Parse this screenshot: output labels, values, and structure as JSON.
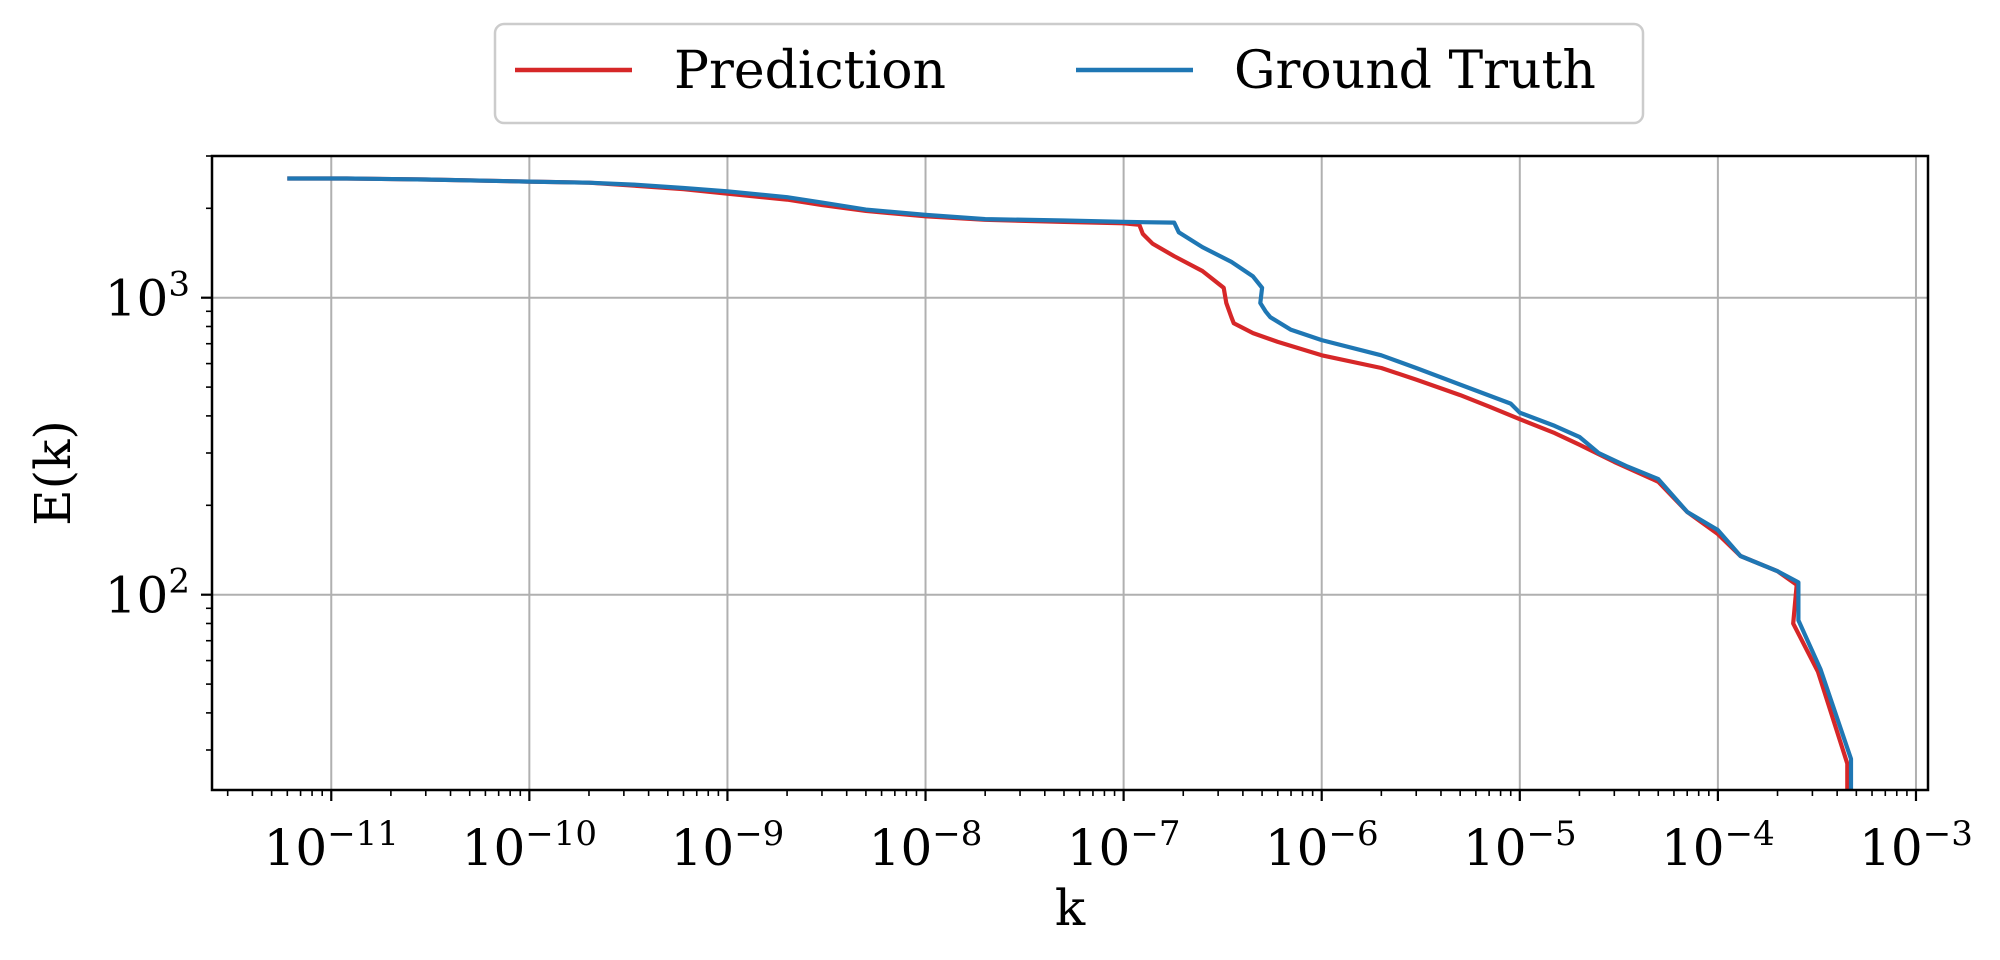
{
  "chart_data": {
    "type": "line",
    "title": "",
    "xlabel": "k",
    "ylabel": "E(k)",
    "x_scale": "log",
    "y_scale": "log",
    "xlim": [
      2.5e-12,
      0.00115
    ],
    "ylim": [
      22,
      3000
    ],
    "grid": true,
    "legend": {
      "placement": "top-center-outside",
      "columns": 2
    },
    "x_ticks": [
      {
        "value": 1e-11,
        "base": "10",
        "exp": "−11"
      },
      {
        "value": 1e-10,
        "base": "10",
        "exp": "−10"
      },
      {
        "value": 1e-09,
        "base": "10",
        "exp": "−9"
      },
      {
        "value": 1e-08,
        "base": "10",
        "exp": "−8"
      },
      {
        "value": 1e-07,
        "base": "10",
        "exp": "−7"
      },
      {
        "value": 1e-06,
        "base": "10",
        "exp": "−6"
      },
      {
        "value": 1e-05,
        "base": "10",
        "exp": "−5"
      },
      {
        "value": 0.0001,
        "base": "10",
        "exp": "−4"
      },
      {
        "value": 0.001,
        "base": "10",
        "exp": "−3"
      }
    ],
    "y_ticks": [
      {
        "value": 100,
        "base": "10",
        "exp": "2"
      },
      {
        "value": 1000,
        "base": "10",
        "exp": "3"
      }
    ],
    "series": [
      {
        "name": "Prediction",
        "color": "#d62728",
        "points": [
          [
            6e-12,
            2520
          ],
          [
            1.2e-11,
            2520
          ],
          [
            3e-11,
            2500
          ],
          [
            1e-10,
            2460
          ],
          [
            2e-10,
            2440
          ],
          [
            3.5e-10,
            2380
          ],
          [
            6e-10,
            2320
          ],
          [
            1e-09,
            2240
          ],
          [
            2e-09,
            2140
          ],
          [
            3e-09,
            2050
          ],
          [
            5e-09,
            1960
          ],
          [
            1e-08,
            1880
          ],
          [
            2e-08,
            1830
          ],
          [
            5e-08,
            1800
          ],
          [
            1e-07,
            1780
          ],
          [
            1.2e-07,
            1760
          ],
          [
            1.25e-07,
            1640
          ],
          [
            1.4e-07,
            1520
          ],
          [
            1.8e-07,
            1380
          ],
          [
            2.5e-07,
            1230
          ],
          [
            3.2e-07,
            1080
          ],
          [
            3.3e-07,
            960
          ],
          [
            3.5e-07,
            860
          ],
          [
            3.6e-07,
            820
          ],
          [
            4.5e-07,
            760
          ],
          [
            6e-07,
            710
          ],
          [
            1e-06,
            640
          ],
          [
            2e-06,
            580
          ],
          [
            3e-06,
            530
          ],
          [
            5e-06,
            470
          ],
          [
            7e-06,
            430
          ],
          [
            1e-05,
            390
          ],
          [
            1.5e-05,
            350
          ],
          [
            2e-05,
            320
          ],
          [
            3e-05,
            280
          ],
          [
            5e-05,
            240
          ],
          [
            7e-05,
            190
          ],
          [
            0.0001,
            160
          ],
          [
            0.00013,
            135
          ],
          [
            0.0002,
            120
          ],
          [
            0.00025,
            108
          ],
          [
            0.00024,
            80
          ],
          [
            0.00032,
            55
          ],
          [
            0.00045,
            27
          ],
          [
            0.00045,
            22
          ]
        ]
      },
      {
        "name": "Ground Truth",
        "color": "#1f77b4",
        "points": [
          [
            6e-12,
            2520
          ],
          [
            1.2e-11,
            2520
          ],
          [
            3e-11,
            2500
          ],
          [
            1e-10,
            2460
          ],
          [
            2e-10,
            2440
          ],
          [
            3.5e-10,
            2400
          ],
          [
            6e-10,
            2340
          ],
          [
            1e-09,
            2280
          ],
          [
            2e-09,
            2180
          ],
          [
            3e-09,
            2090
          ],
          [
            5e-09,
            1980
          ],
          [
            1e-08,
            1900
          ],
          [
            2e-08,
            1840
          ],
          [
            5e-08,
            1820
          ],
          [
            1e-07,
            1800
          ],
          [
            1.8e-07,
            1790
          ],
          [
            1.9e-07,
            1660
          ],
          [
            2.5e-07,
            1480
          ],
          [
            3.5e-07,
            1320
          ],
          [
            4.5e-07,
            1180
          ],
          [
            5e-07,
            1080
          ],
          [
            4.9e-07,
            960
          ],
          [
            5.2e-07,
            900
          ],
          [
            5.5e-07,
            860
          ],
          [
            7e-07,
            780
          ],
          [
            1e-06,
            720
          ],
          [
            2e-06,
            640
          ],
          [
            3e-06,
            580
          ],
          [
            5e-06,
            510
          ],
          [
            9e-06,
            440
          ],
          [
            1e-05,
            410
          ],
          [
            1.5e-05,
            370
          ],
          [
            2e-05,
            340
          ],
          [
            2.5e-05,
            300
          ],
          [
            3.5e-05,
            270
          ],
          [
            5e-05,
            245
          ],
          [
            7e-05,
            190
          ],
          [
            0.0001,
            165
          ],
          [
            0.00013,
            135
          ],
          [
            0.0002,
            120
          ],
          [
            0.000255,
            110
          ],
          [
            0.000255,
            82
          ],
          [
            0.00033,
            56
          ],
          [
            0.00047,
            28
          ],
          [
            0.00047,
            22
          ]
        ]
      }
    ]
  }
}
